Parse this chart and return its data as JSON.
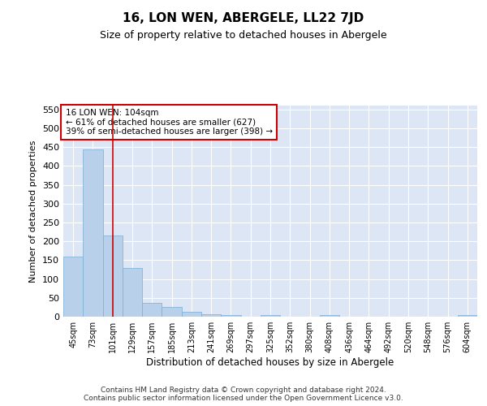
{
  "title": "16, LON WEN, ABERGELE, LL22 7JD",
  "subtitle": "Size of property relative to detached houses in Abergele",
  "xlabel": "Distribution of detached houses by size in Abergele",
  "ylabel": "Number of detached properties",
  "categories": [
    "45sqm",
    "73sqm",
    "101sqm",
    "129sqm",
    "157sqm",
    "185sqm",
    "213sqm",
    "241sqm",
    "269sqm",
    "297sqm",
    "325sqm",
    "352sqm",
    "380sqm",
    "408sqm",
    "436sqm",
    "464sqm",
    "492sqm",
    "520sqm",
    "548sqm",
    "576sqm",
    "604sqm"
  ],
  "values": [
    160,
    443,
    216,
    129,
    37,
    25,
    12,
    6,
    5,
    0,
    5,
    0,
    0,
    5,
    0,
    0,
    0,
    0,
    0,
    0,
    5
  ],
  "bar_color": "#b8d0ea",
  "bar_edge_color": "#7aadd4",
  "vline_x": 2,
  "vline_color": "#cc0000",
  "annotation_text": "16 LON WEN: 104sqm\n← 61% of detached houses are smaller (627)\n39% of semi-detached houses are larger (398) →",
  "annotation_box_color": "#ffffff",
  "annotation_box_edgecolor": "#cc0000",
  "ylim": [
    0,
    560
  ],
  "yticks": [
    0,
    50,
    100,
    150,
    200,
    250,
    300,
    350,
    400,
    450,
    500,
    550
  ],
  "bg_color": "#dce6f5",
  "footer_line1": "Contains HM Land Registry data © Crown copyright and database right 2024.",
  "footer_line2": "Contains public sector information licensed under the Open Government Licence v3.0.",
  "title_fontsize": 11,
  "subtitle_fontsize": 9,
  "footer_fontsize": 6.5
}
